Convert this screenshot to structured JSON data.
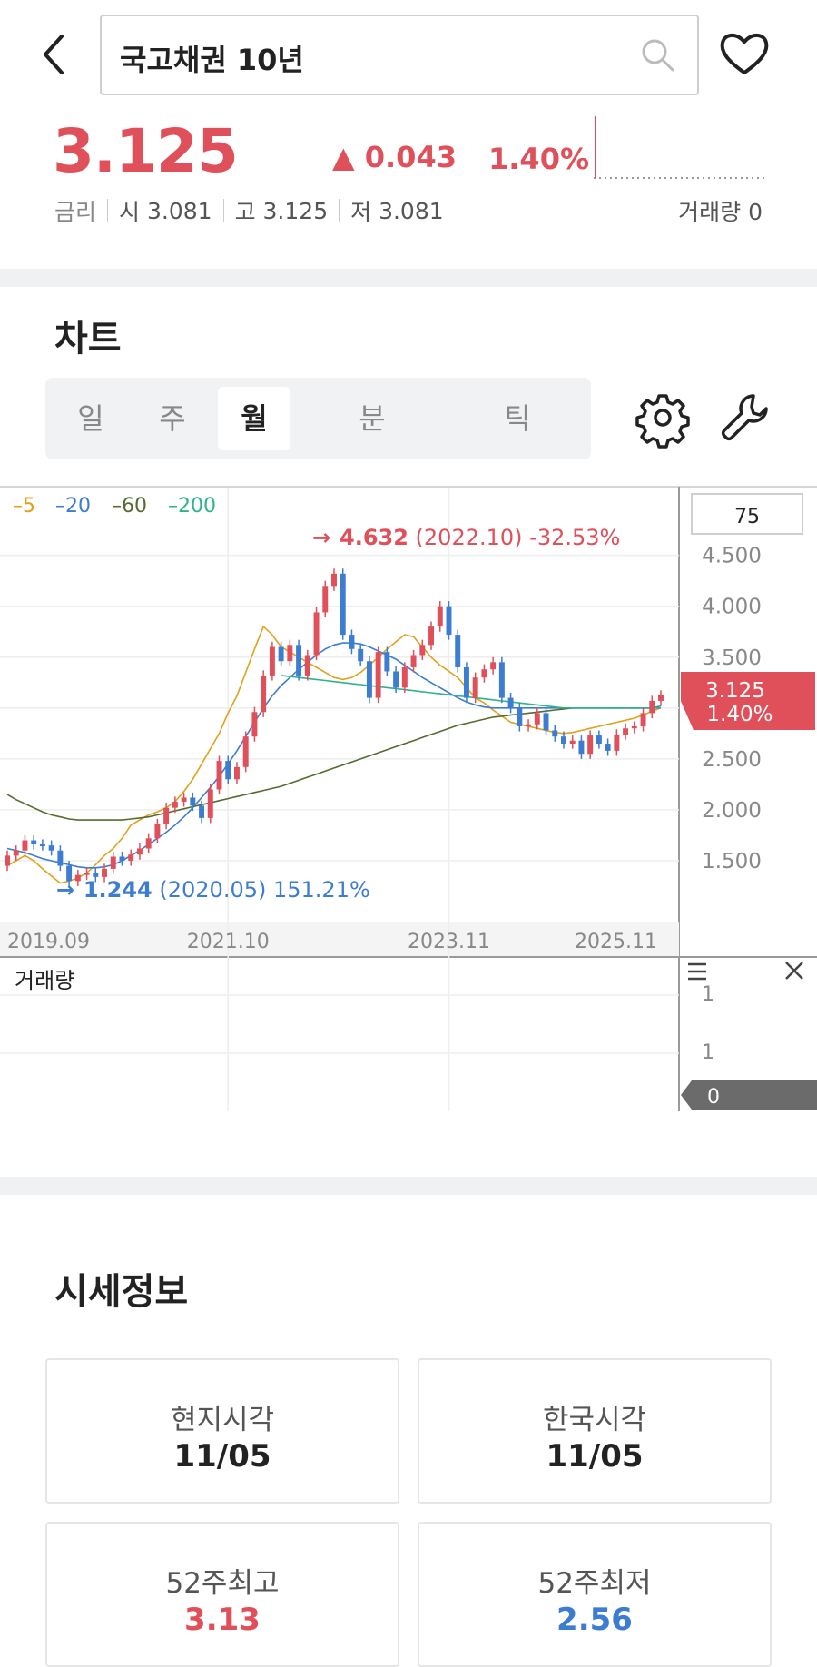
{
  "header": {
    "search_text": "국고채권 10년",
    "back_icon": "chevron-left-icon",
    "favorite_icon": "heart-icon",
    "search_icon": "search-icon"
  },
  "quote": {
    "price": "3.125",
    "change": "▲ 0.043",
    "change_pct": "1.40%",
    "type_label": "금리",
    "open_label": "시",
    "open_value": "3.081",
    "high_label": "고",
    "high_value": "3.125",
    "low_label": "저",
    "low_value": "3.081",
    "volume_label": "거래량",
    "volume_value": "0",
    "up_color": "#e0505a"
  },
  "chart_section": {
    "title": "차트",
    "tabs": [
      {
        "label": "일",
        "active": false
      },
      {
        "label": "주",
        "active": false
      },
      {
        "label": "월",
        "active": true
      },
      {
        "label": "분",
        "active": false
      },
      {
        "label": "틱",
        "active": false
      }
    ],
    "settings_icon": "gear-icon",
    "tools_icon": "wrench-icon"
  },
  "chart_data": {
    "type": "candlestick",
    "period": "monthly",
    "legend": [
      {
        "label": "5",
        "color": "#e0a21a"
      },
      {
        "label": "20",
        "color": "#3d7dd1"
      },
      {
        "label": "60",
        "color": "#556b2f"
      },
      {
        "label": "200",
        "color": "#2eb38a"
      }
    ],
    "count_box": "75",
    "y_ticks": [
      "4.500",
      "4.000",
      "3.500",
      "2.500",
      "2.000",
      "1.500"
    ],
    "y_range": [
      1.0,
      5.05
    ],
    "x_ticks": [
      {
        "label": "2019.09",
        "index": 0
      },
      {
        "label": "2021.10",
        "index": 25
      },
      {
        "label": "2023.11",
        "index": 50
      },
      {
        "label": "2025.11",
        "index": 74
      }
    ],
    "current_label": {
      "price": "3.125",
      "pct": "1.40%"
    },
    "high_annotation": {
      "value": "4.632",
      "date": "(2022.10)",
      "pct": "-32.53%",
      "index": 37
    },
    "low_annotation": {
      "value": "1.244",
      "date": "(2020.05)",
      "pct": "151.21%",
      "index": 8
    },
    "close": [
      1.55,
      1.6,
      1.7,
      1.66,
      1.65,
      1.6,
      1.45,
      1.3,
      1.36,
      1.38,
      1.34,
      1.42,
      1.54,
      1.5,
      1.56,
      1.62,
      1.72,
      1.86,
      2.02,
      2.08,
      2.12,
      2.04,
      1.92,
      2.2,
      2.48,
      2.3,
      2.42,
      2.72,
      2.96,
      3.32,
      3.6,
      3.46,
      3.62,
      3.32,
      3.52,
      3.94,
      4.2,
      4.32,
      3.72,
      3.58,
      3.46,
      3.1,
      3.55,
      3.36,
      3.2,
      3.4,
      3.52,
      3.62,
      3.8,
      4.0,
      3.72,
      3.4,
      3.1,
      3.3,
      3.38,
      3.45,
      3.1,
      3.0,
      2.82,
      2.84,
      2.95,
      2.78,
      2.72,
      2.65,
      2.68,
      2.55,
      2.73,
      2.65,
      2.58,
      2.74,
      2.8,
      2.82,
      2.95,
      3.07,
      3.125
    ],
    "ma": [
      {
        "name": "5",
        "values": [
          1.45,
          1.5,
          1.55,
          1.5,
          1.42,
          1.35,
          1.28,
          1.3,
          1.33,
          1.38,
          1.46,
          1.55,
          1.62,
          1.72,
          1.85,
          1.9,
          1.95,
          1.98,
          2.02,
          2.08,
          2.18,
          2.3,
          2.45,
          2.6,
          2.75,
          2.95,
          3.12,
          3.35,
          3.58,
          3.8,
          3.72,
          3.6,
          3.55,
          3.5,
          3.45,
          3.4,
          3.35,
          3.3,
          3.28,
          3.3,
          3.35,
          3.42,
          3.5,
          3.58,
          3.65,
          3.72,
          3.7,
          3.6,
          3.5,
          3.42,
          3.36,
          3.3,
          3.2,
          3.1,
          3.05,
          2.98,
          2.92,
          2.86,
          2.84,
          2.82,
          2.8,
          2.78,
          2.76,
          2.75,
          2.76,
          2.78,
          2.8,
          2.82,
          2.84,
          2.86,
          2.88,
          2.9,
          2.93,
          2.97,
          3.0
        ]
      },
      {
        "name": "20",
        "values": [
          1.62,
          1.6,
          1.58,
          1.55,
          1.52,
          1.5,
          1.48,
          1.46,
          1.44,
          1.43,
          1.43,
          1.44,
          1.46,
          1.5,
          1.55,
          1.6,
          1.66,
          1.72,
          1.78,
          1.85,
          1.93,
          2.02,
          2.12,
          2.22,
          2.33,
          2.45,
          2.58,
          2.72,
          2.86,
          3.0,
          3.12,
          3.22,
          3.3,
          3.38,
          3.45,
          3.52,
          3.58,
          3.62,
          3.64,
          3.64,
          3.63,
          3.6,
          3.56,
          3.52,
          3.48,
          3.42,
          3.36,
          3.3,
          3.25,
          3.2,
          3.15,
          3.1,
          3.06,
          3.03,
          3.01,
          3.0,
          3.0,
          3.0,
          3.0,
          3.0,
          3.0,
          3.0,
          3.0,
          3.0,
          3.0,
          3.0,
          3.0,
          3.0,
          3.0,
          3.0,
          3.0,
          3.0,
          3.0,
          3.0,
          3.02
        ]
      },
      {
        "name": "60",
        "values": [
          2.15,
          2.1,
          2.06,
          2.02,
          1.98,
          1.95,
          1.93,
          1.91,
          1.9,
          1.9,
          1.9,
          1.9,
          1.9,
          1.9,
          1.91,
          1.92,
          1.93,
          1.95,
          1.97,
          1.99,
          2.01,
          2.03,
          2.05,
          2.07,
          2.09,
          2.11,
          2.13,
          2.15,
          2.17,
          2.19,
          2.21,
          2.23,
          2.26,
          2.29,
          2.32,
          2.35,
          2.38,
          2.41,
          2.44,
          2.47,
          2.5,
          2.53,
          2.56,
          2.59,
          2.62,
          2.65,
          2.68,
          2.71,
          2.74,
          2.77,
          2.8,
          2.83,
          2.85,
          2.87,
          2.89,
          2.91,
          2.92,
          2.93,
          2.94,
          2.95,
          2.96,
          2.97,
          2.98,
          2.99,
          3.0,
          3.0,
          3.0,
          3.0,
          3.0,
          3.0,
          3.0,
          3.0,
          3.0,
          3.0,
          3.0
        ]
      },
      {
        "name": "200",
        "start_index": 31,
        "values": [
          3.32,
          3.31,
          3.3,
          3.29,
          3.28,
          3.27,
          3.26,
          3.25,
          3.24,
          3.23,
          3.22,
          3.21,
          3.2,
          3.19,
          3.18,
          3.17,
          3.16,
          3.15,
          3.14,
          3.13,
          3.12,
          3.11,
          3.1,
          3.09,
          3.08,
          3.07,
          3.06,
          3.05,
          3.04,
          3.03,
          3.02,
          3.01,
          3.0,
          3.0,
          3.0,
          3.0,
          3.0,
          3.0,
          3.0,
          3.0,
          3.0,
          3.0,
          3.0,
          3.0
        ]
      }
    ],
    "volume_panel": {
      "title": "거래량",
      "y_ticks": [
        "1",
        "1"
      ],
      "current": "0",
      "menu_icon": "menu-icon",
      "close_icon": "close-icon"
    }
  },
  "market_info": {
    "title": "시세정보",
    "cards": [
      {
        "label": "현지시각",
        "value": "11/05"
      },
      {
        "label": "한국시각",
        "value": "11/05"
      },
      {
        "label": "52주최고",
        "value": "3.13"
      },
      {
        "label": "52주최저",
        "value": "2.56"
      }
    ]
  }
}
